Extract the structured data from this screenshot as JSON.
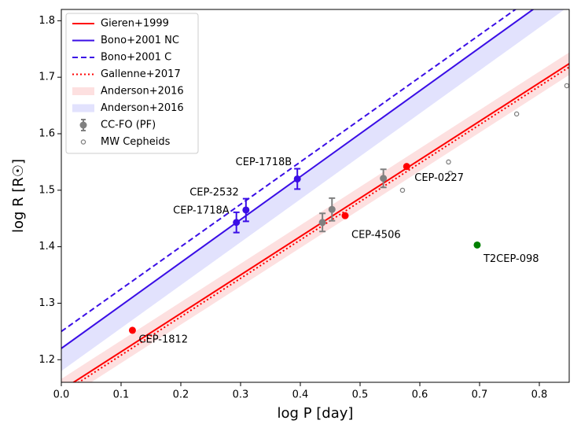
{
  "chart_data": {
    "type": "line",
    "xlabel": "log P [day]",
    "ylabel": "log R [R☉]",
    "xlim": [
      0,
      0.85
    ],
    "ylim": [
      1.16,
      1.82
    ],
    "xticks": [
      {
        "value": 0,
        "label": "0.0"
      },
      0.1,
      0.2,
      0.3,
      0.4,
      0.5,
      0.6,
      0.7,
      0.8
    ],
    "yticks": [
      1.2,
      1.3,
      1.4,
      1.5,
      1.6,
      1.7,
      1.8
    ],
    "legend": "upper left",
    "series": [
      {
        "name": "Gieren+1999",
        "kind": "line",
        "style": "solid",
        "color": "#ff0000",
        "x": [
          0,
          0.85
        ],
        "values": [
          1.146,
          1.724
        ]
      },
      {
        "name": "Bono+2001 NC",
        "kind": "line",
        "style": "solid",
        "color": "#3a0ee6",
        "x": [
          0,
          0.85
        ],
        "values": [
          1.22,
          1.866
        ]
      },
      {
        "name": "Bono+2001 C",
        "kind": "line",
        "style": "dashed",
        "color": "#3a0ee6",
        "x": [
          0,
          0.85
        ],
        "values": [
          1.25,
          1.8875
        ]
      },
      {
        "name": "Gallenne+2017",
        "kind": "line",
        "style": "dotted",
        "color": "#ff0000",
        "x": [
          0,
          0.85
        ],
        "values": [
          1.14,
          1.718
        ]
      },
      {
        "name": "Anderson+2016",
        "kind": "band",
        "color": "#fde0e0",
        "x": [
          0,
          0.85
        ],
        "lower": [
          1.126,
          1.704
        ],
        "upper": [
          1.166,
          1.744
        ]
      },
      {
        "name": "Anderson+2016",
        "kind": "band",
        "color": "#e2e2fd",
        "x": [
          0,
          0.85
        ],
        "lower": [
          1.18,
          1.826
        ],
        "upper": [
          1.22,
          1.866
        ]
      },
      {
        "name": "CC-FO (PF)",
        "kind": "errorbar",
        "color": "#808080",
        "x": [
          0.437,
          0.453,
          0.539
        ],
        "values": [
          1.443,
          1.466,
          1.521
        ],
        "errors": [
          0.016,
          0.02,
          0.016
        ]
      },
      {
        "name": "MW Cepheids",
        "kind": "open",
        "color": "#808080",
        "x": [
          0.571,
          0.648,
          0.651,
          0.762,
          0.846
        ],
        "values": [
          1.5,
          1.55,
          1.53,
          1.635,
          1.685
        ]
      },
      {
        "kind": "errorbar",
        "color": "#3a0ee6",
        "x": [
          0.293,
          0.309,
          0.395
        ],
        "values": [
          1.443,
          1.465,
          1.52
        ],
        "errors": [
          0.018,
          0.02,
          0.018
        ],
        "labels": [
          "CEP-1718A",
          "CEP-2532",
          "CEP-1718B"
        ]
      },
      {
        "kind": "scatter",
        "color": "#ff0000",
        "x": [
          0.119,
          0.475,
          0.578
        ],
        "values": [
          1.252,
          1.455,
          1.542
        ],
        "labels": [
          "CEP-1812",
          "CEP-4506",
          "CEP-0227"
        ]
      },
      {
        "kind": "scatter",
        "color": "#008000",
        "x": [
          0.696
        ],
        "values": [
          1.403
        ],
        "labels": [
          "T2CEP-098"
        ]
      }
    ]
  }
}
